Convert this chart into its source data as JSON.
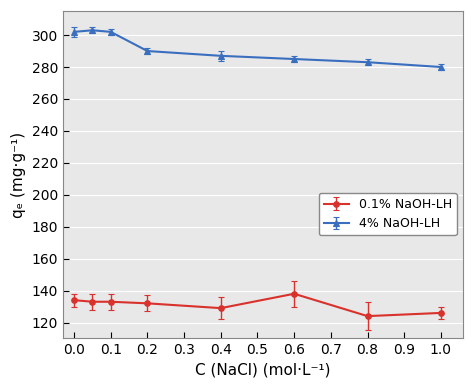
{
  "red_x": [
    0.0,
    0.05,
    0.1,
    0.2,
    0.4,
    0.6,
    0.8,
    1.0
  ],
  "red_y": [
    134,
    133,
    133,
    132,
    129,
    138,
    124,
    126
  ],
  "red_yerr": [
    4,
    5,
    5,
    5,
    7,
    8,
    9,
    4
  ],
  "blue_x": [
    0.0,
    0.05,
    0.1,
    0.2,
    0.4,
    0.6,
    0.8,
    1.0
  ],
  "blue_y": [
    302,
    303,
    302,
    290,
    287,
    285,
    283,
    280
  ],
  "blue_yerr": [
    3,
    2,
    2,
    2,
    3,
    2,
    2,
    2
  ],
  "red_label": "0.1% NaOH-LH",
  "blue_label": "4% NaOH-LH",
  "red_color": "#d9312b",
  "blue_color": "#3a6fbf",
  "xlabel": "C (NaCl) (mol·L⁻¹)",
  "ylabel": "qₑ (mg·g⁻¹)",
  "xlim": [
    -0.03,
    1.06
  ],
  "ylim": [
    110,
    315
  ],
  "yticks": [
    120,
    140,
    160,
    180,
    200,
    220,
    240,
    260,
    280,
    300
  ],
  "xticks": [
    0.0,
    0.1,
    0.2,
    0.3,
    0.4,
    0.5,
    0.6,
    0.7,
    0.8,
    0.9,
    1.0
  ],
  "marker_red": "o",
  "marker_blue": "^",
  "linewidth": 1.5,
  "markersize": 4,
  "capsize": 2.5,
  "tick_fontsize": 10,
  "label_fontsize": 11,
  "legend_fontsize": 9,
  "bg_color": "#e8e8e8"
}
